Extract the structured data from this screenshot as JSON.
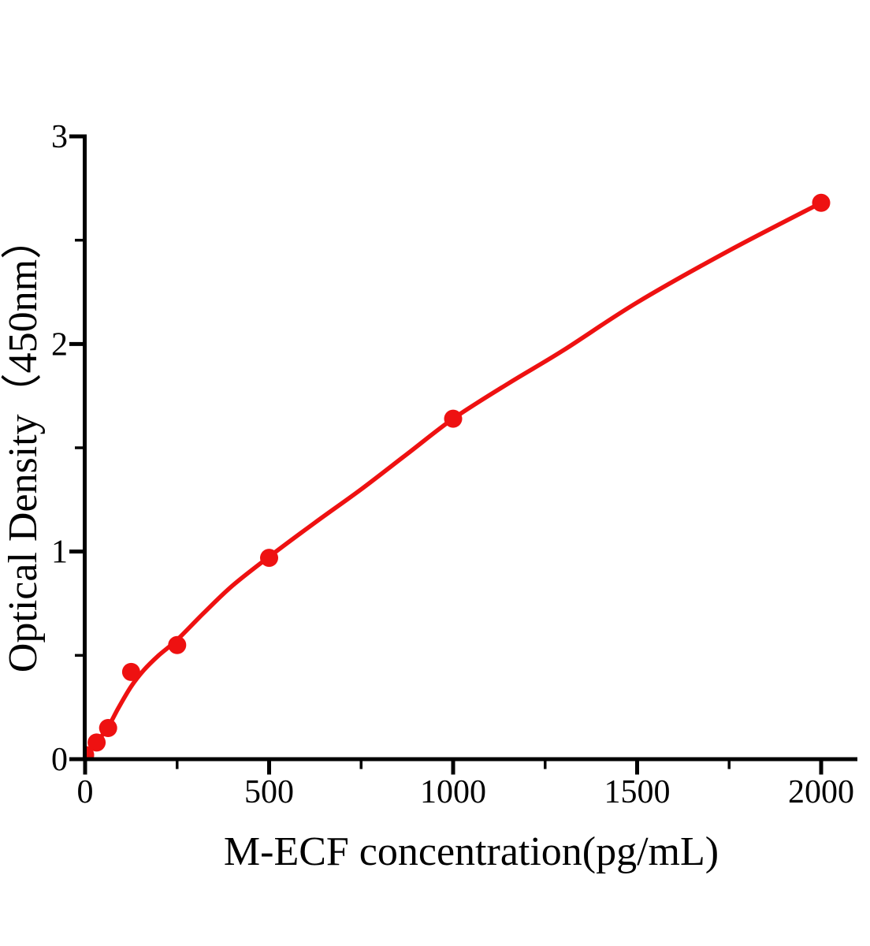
{
  "colors": {
    "curve": "#ee1111",
    "marker": "#ee1111",
    "axis": "#000000",
    "background": "#ffffff"
  },
  "chart_data": {
    "type": "scatter",
    "title": "",
    "xlabel": "M-ECF concentration(pg/mL)",
    "ylabel": "Optical Density（450nm）",
    "xlim": [
      0,
      2100
    ],
    "ylim": [
      0,
      3
    ],
    "grid": false,
    "legend": null,
    "x_ticks": {
      "major_values": [
        0,
        500,
        1000,
        1500,
        2000
      ],
      "major_labels": [
        "0",
        "500",
        "1000",
        "1500",
        "2000"
      ],
      "minor_values": [
        250,
        750,
        1250,
        1750
      ]
    },
    "y_ticks": {
      "major_values": [
        0,
        1,
        2,
        3
      ],
      "major_labels": [
        "0",
        "1",
        "2",
        "3"
      ],
      "minor_values": [
        0.5,
        1.5,
        2.5
      ]
    },
    "series": [
      {
        "name": "standard-points",
        "kind": "scatter",
        "x": [
          0,
          31.25,
          62.5,
          125,
          250,
          500,
          1000,
          2000
        ],
        "y": [
          0.02,
          0.08,
          0.15,
          0.42,
          0.55,
          0.97,
          1.64,
          2.68
        ]
      },
      {
        "name": "fit-curve",
        "kind": "line",
        "points": [
          [
            0,
            0.01
          ],
          [
            15,
            0.045
          ],
          [
            31.25,
            0.08
          ],
          [
            62.5,
            0.155
          ],
          [
            90,
            0.245
          ],
          [
            125,
            0.35
          ],
          [
            160,
            0.43
          ],
          [
            200,
            0.5
          ],
          [
            250,
            0.575
          ],
          [
            320,
            0.7
          ],
          [
            400,
            0.835
          ],
          [
            500,
            0.975
          ],
          [
            625,
            1.14
          ],
          [
            750,
            1.3
          ],
          [
            875,
            1.47
          ],
          [
            1000,
            1.64
          ],
          [
            1150,
            1.81
          ],
          [
            1300,
            1.97
          ],
          [
            1500,
            2.2
          ],
          [
            1750,
            2.45
          ],
          [
            2000,
            2.68
          ]
        ]
      }
    ]
  }
}
